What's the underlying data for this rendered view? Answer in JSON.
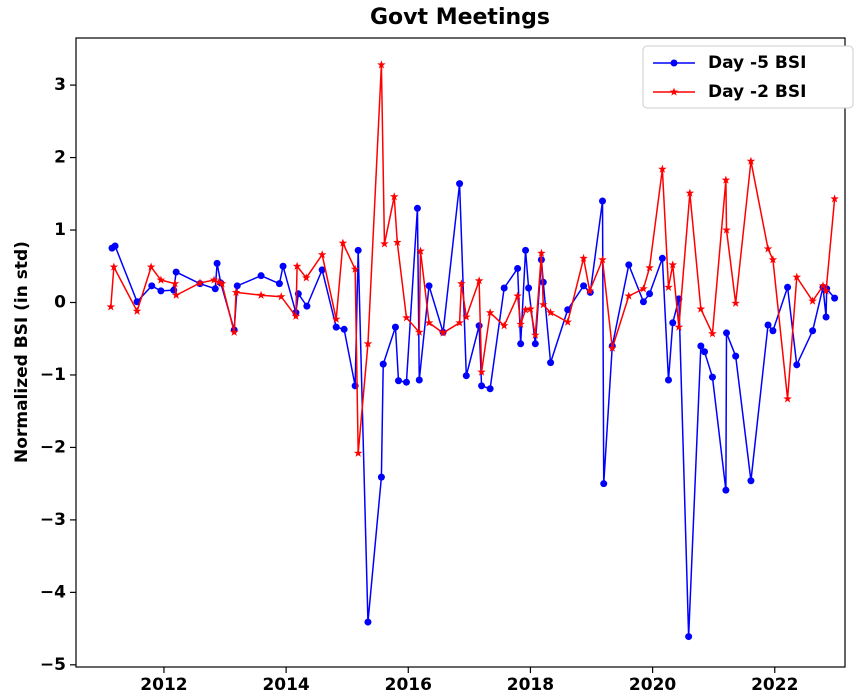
{
  "chart_data": {
    "type": "line",
    "title": "Govt Meetings",
    "y_label": "Normalized BSI (in std)",
    "xlim": [
      2010.56,
      2023.15
    ],
    "ylim": [
      -5.03,
      3.65
    ],
    "xticks": [
      2012,
      2014,
      2016,
      2018,
      2020,
      2022
    ],
    "yticks": [
      {
        "value": -5,
        "label": "−5"
      },
      {
        "value": -4,
        "label": "−4"
      },
      {
        "value": -3,
        "label": "−3"
      },
      {
        "value": -2,
        "label": "−2"
      },
      {
        "value": -1,
        "label": "−1"
      },
      0,
      1,
      2,
      3
    ],
    "legend": "upper right",
    "series": [
      {
        "name": "Day -5 BSI",
        "color": "#0000ff",
        "marker": "circle",
        "x": [
          2011.15,
          2011.2,
          2011.56,
          2011.8,
          2011.95,
          2012.16,
          2012.2,
          2012.59,
          2012.84,
          2012.87,
          2012.93,
          2013.15,
          2013.2,
          2013.59,
          2013.89,
          2013.95,
          2014.16,
          2014.2,
          2014.34,
          2014.59,
          2014.82,
          2014.95,
          2015.13,
          2015.18,
          2015.34,
          2015.56,
          2015.59,
          2015.79,
          2015.84,
          2015.97,
          2016.15,
          2016.18,
          2016.34,
          2016.57,
          2016.84,
          2016.95,
          2017.16,
          2017.2,
          2017.34,
          2017.57,
          2017.79,
          2017.84,
          2017.92,
          2017.97,
          2018.08,
          2018.18,
          2018.21,
          2018.33,
          2018.61,
          2018.87,
          2018.98,
          2019.18,
          2019.2,
          2019.34,
          2019.61,
          2019.85,
          2019.95,
          2020.16,
          2020.26,
          2020.33,
          2020.43,
          2020.59,
          2020.79,
          2020.85,
          2020.98,
          2021.2,
          2021.21,
          2021.36,
          2021.61,
          2021.89,
          2021.97,
          2022.21,
          2022.36,
          2022.62,
          2022.79,
          2022.84,
          2022.85,
          2022.98
        ],
        "values": [
          0.75,
          0.78,
          0.01,
          0.23,
          0.16,
          0.17,
          0.42,
          0.26,
          0.19,
          0.54,
          0.27,
          -0.38,
          0.23,
          0.37,
          0.26,
          0.5,
          -0.14,
          0.12,
          -0.05,
          0.45,
          -0.34,
          -0.37,
          -1.15,
          0.72,
          -4.41,
          -2.41,
          -0.85,
          -0.34,
          -1.08,
          -1.1,
          1.3,
          -1.07,
          0.23,
          -0.41,
          1.64,
          -1.01,
          -0.32,
          -1.15,
          -1.19,
          0.2,
          0.47,
          -0.57,
          0.72,
          0.2,
          -0.57,
          0.59,
          0.28,
          -0.83,
          -0.1,
          0.23,
          0.14,
          1.4,
          -2.5,
          -0.6,
          0.52,
          0.01,
          0.12,
          0.61,
          -1.07,
          -0.28,
          0.05,
          -4.61,
          -0.6,
          -0.68,
          -1.03,
          -2.59,
          -0.42,
          -0.74,
          -2.46,
          -0.31,
          -0.39,
          0.21,
          -0.86,
          -0.39,
          0.21,
          -0.2,
          0.19,
          0.06
        ]
      },
      {
        "name": "Day -2 BSI",
        "color": "#ff0000",
        "marker": "star",
        "x": [
          2011.13,
          2011.18,
          2011.56,
          2011.79,
          2011.95,
          2012.18,
          2012.2,
          2012.59,
          2012.82,
          2012.9,
          2012.95,
          2013.15,
          2013.18,
          2013.59,
          2013.92,
          2014.16,
          2014.18,
          2014.33,
          2014.59,
          2014.82,
          2014.93,
          2015.13,
          2015.18,
          2015.34,
          2015.56,
          2015.61,
          2015.77,
          2015.82,
          2015.97,
          2016.18,
          2016.2,
          2016.34,
          2016.57,
          2016.84,
          2016.87,
          2016.95,
          2017.16,
          2017.2,
          2017.34,
          2017.57,
          2017.79,
          2017.84,
          2017.92,
          2018.0,
          2018.08,
          2018.18,
          2018.21,
          2018.33,
          2018.61,
          2018.87,
          2018.97,
          2019.18,
          2019.34,
          2019.61,
          2019.85,
          2019.95,
          2020.16,
          2020.26,
          2020.33,
          2020.43,
          2020.61,
          2020.79,
          2020.98,
          2021.2,
          2021.21,
          2021.36,
          2021.61,
          2021.89,
          2021.97,
          2022.21,
          2022.36,
          2022.62,
          2022.79,
          2022.84,
          2022.98
        ],
        "values": [
          -0.06,
          0.49,
          -0.12,
          0.49,
          0.31,
          0.26,
          0.1,
          0.27,
          0.31,
          0.28,
          0.26,
          -0.41,
          0.14,
          0.1,
          0.08,
          -0.19,
          0.5,
          0.34,
          0.66,
          -0.23,
          0.82,
          0.46,
          -2.08,
          -0.57,
          3.28,
          0.81,
          1.46,
          0.83,
          -0.21,
          -0.41,
          0.71,
          -0.28,
          -0.42,
          -0.28,
          0.26,
          -0.2,
          0.3,
          -0.96,
          -0.14,
          -0.32,
          0.09,
          -0.3,
          -0.1,
          -0.09,
          -0.45,
          0.68,
          -0.03,
          -0.14,
          -0.27,
          0.61,
          0.16,
          0.59,
          -0.63,
          0.09,
          0.19,
          0.48,
          1.84,
          0.21,
          0.52,
          -0.34,
          1.51,
          -0.09,
          -0.43,
          1.69,
          1.0,
          -0.01,
          1.95,
          0.74,
          0.59,
          -1.33,
          0.35,
          0.02,
          0.23,
          0.16,
          1.43
        ]
      }
    ]
  }
}
